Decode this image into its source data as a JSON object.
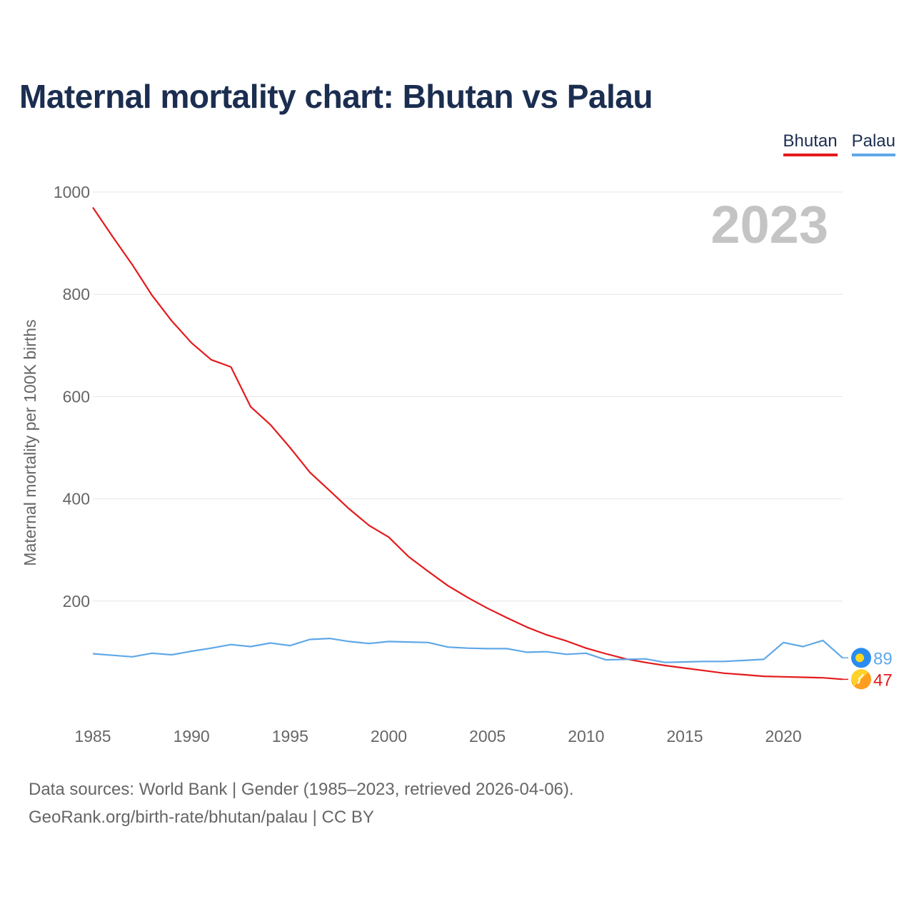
{
  "title": "Maternal mortality chart: Bhutan vs Palau",
  "legend": [
    {
      "name": "Bhutan",
      "color": "#e41a1c"
    },
    {
      "name": "Palau",
      "color": "#5fa8e8"
    }
  ],
  "footer": {
    "line1": "Data sources: World Bank | Gender (1985–2023, retrieved 2026-04-06).",
    "line2": "GeoRank.org/birth-rate/bhutan/palau | CC BY"
  },
  "chart_data": {
    "type": "line",
    "title": "Maternal mortality chart: Bhutan vs Palau",
    "year_label": "2023",
    "xlabel": "",
    "ylabel": "Maternal mortality per 100K births",
    "xlim": [
      1985,
      2023
    ],
    "ylim": [
      0,
      1000
    ],
    "yticks": [
      200,
      400,
      600,
      800,
      1000
    ],
    "xticks": [
      1985,
      1990,
      1995,
      2000,
      2005,
      2010,
      2015,
      2020
    ],
    "grid": true,
    "legend_position": "top-right",
    "x": [
      1985,
      1986,
      1987,
      1988,
      1989,
      1990,
      1991,
      1992,
      1993,
      1994,
      1995,
      1996,
      1997,
      1998,
      1999,
      2000,
      2001,
      2002,
      2003,
      2004,
      2005,
      2006,
      2007,
      2008,
      2009,
      2010,
      2011,
      2012,
      2013,
      2014,
      2015,
      2016,
      2017,
      2018,
      2019,
      2020,
      2021,
      2022,
      2023
    ],
    "series": [
      {
        "name": "Bhutan",
        "color": "#e41a1c",
        "end_label": "47",
        "end_icon": "bhutan-flag-icon",
        "values": [
          970,
          913,
          858,
          798,
          748,
          705,
          672,
          658,
          580,
          545,
          500,
          452,
          416,
          380,
          348,
          325,
          287,
          258,
          230,
          207,
          186,
          167,
          149,
          134,
          122,
          108,
          97,
          87,
          80,
          74,
          69,
          64,
          59,
          56,
          53,
          52,
          51,
          50,
          47
        ]
      },
      {
        "name": "Palau",
        "color": "#5fa8e8",
        "end_label": "89",
        "end_icon": "palau-flag-icon",
        "values": [
          97,
          94,
          91,
          98,
          95,
          102,
          108,
          115,
          111,
          118,
          113,
          125,
          127,
          121,
          117,
          121,
          120,
          119,
          110,
          108,
          107,
          107,
          100,
          101,
          96,
          98,
          85,
          86,
          87,
          80,
          81,
          82,
          82,
          84,
          86,
          119,
          111,
          123,
          89
        ]
      }
    ]
  }
}
